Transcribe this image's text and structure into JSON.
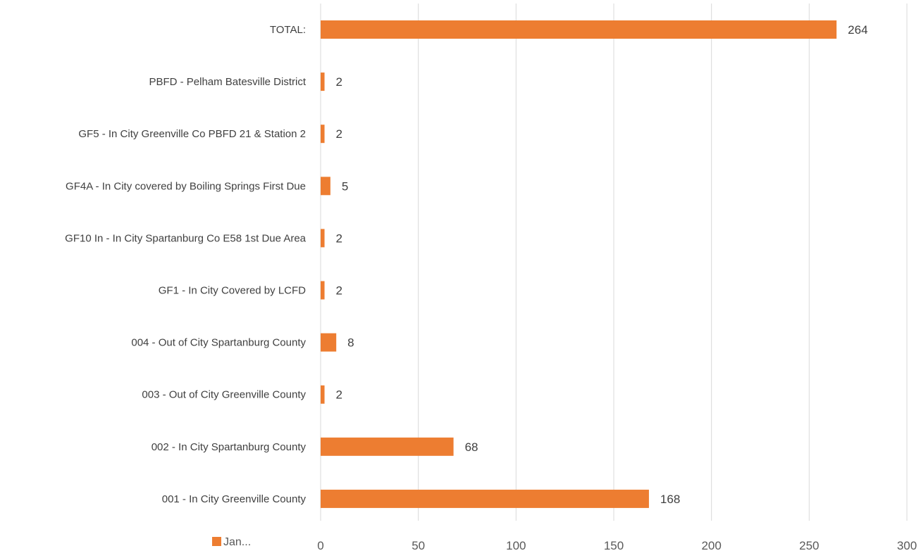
{
  "chart_data": {
    "type": "bar",
    "orientation": "horizontal",
    "title": "",
    "xlabel": "",
    "ylabel": "",
    "xlim": [
      0,
      300
    ],
    "xticks": [
      0,
      50,
      100,
      150,
      200,
      250,
      300
    ],
    "grid": true,
    "legend_position": "bottom-left",
    "categories": [
      "TOTAL:",
      "PBFD - Pelham Batesville District",
      "GF5 - In City Greenville Co PBFD 21 & Station 2",
      "GF4A - In City covered by Boiling Springs First Due",
      "GF10 In - In City Spartanburg Co E58 1st Due Area",
      "GF1 - In City Covered by LCFD",
      "004 - Out of City Spartanburg County",
      "003 - Out of City Greenville County",
      "002 - In City Spartanburg County",
      "001 - In City Greenville County"
    ],
    "series": [
      {
        "name": "Jan...",
        "color": "#ed7d31",
        "values": [
          264,
          2,
          2,
          5,
          2,
          2,
          8,
          2,
          68,
          168
        ]
      }
    ]
  }
}
